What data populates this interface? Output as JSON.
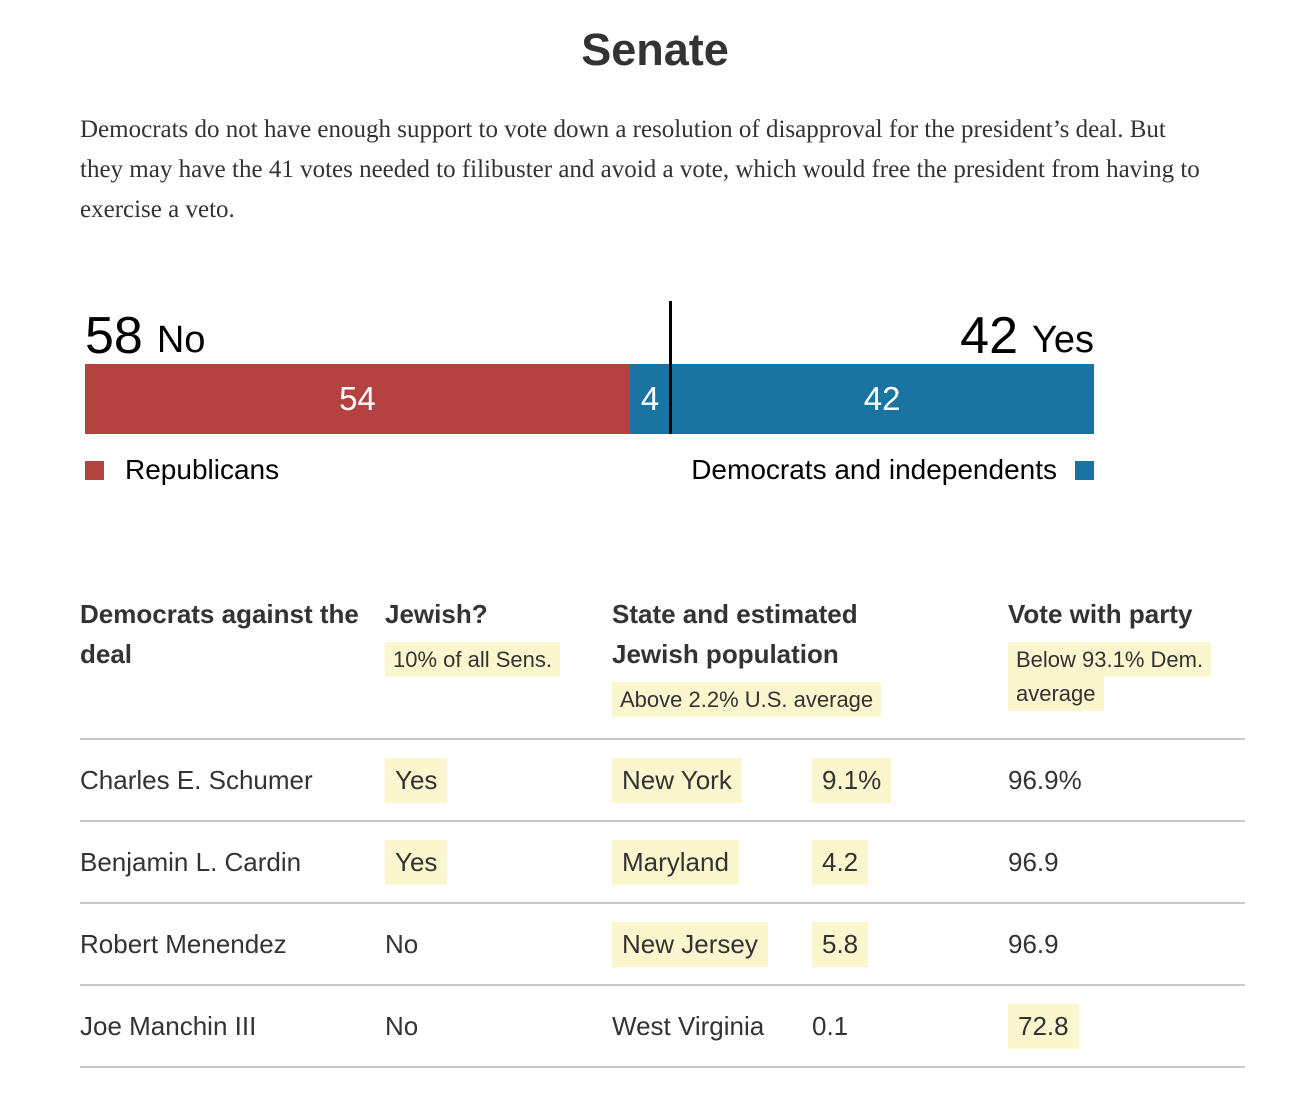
{
  "page_title": "Senate",
  "intro": "Democrats do not have enough support to vote down a resolution of disapproval for the president’s deal. But they may have the 41 votes needed to filibuster and avoid a vote, which would free the president from having to exercise a veto.",
  "colors": {
    "republican_red": "#b44240",
    "democrat_blue": "#1a74a2",
    "highlight_yellow": "#fbf6cd",
    "rule_gray": "#c9c9c9",
    "text_dark": "#333333"
  },
  "chart_data": {
    "type": "bar",
    "title": "Senate",
    "orientation": "horizontal-stacked",
    "x_domain": [
      0,
      100
    ],
    "no": {
      "value": "58",
      "label": "No"
    },
    "yes": {
      "value": "42",
      "label": "Yes"
    },
    "segments": [
      {
        "name": "republicans-no",
        "party": "Republicans",
        "vote": "No",
        "value": 54,
        "color": "#b44240"
      },
      {
        "name": "democrats-no",
        "party": "Democrats and independents",
        "vote": "No",
        "value": 4,
        "color": "#1a74a2"
      },
      {
        "name": "democrats-yes",
        "party": "Democrats and independents",
        "vote": "Yes",
        "value": 42,
        "color": "#1a74a2"
      }
    ],
    "divider_at_votes": 58,
    "legend": [
      {
        "label": "Republicans",
        "color": "#b44240",
        "swatch_side": "left"
      },
      {
        "label": "Democrats and independents",
        "color": "#1a74a2",
        "swatch_side": "right"
      }
    ]
  },
  "table": {
    "headers": {
      "name": "Democrats against the deal",
      "jewish": "Jewish?",
      "jewish_note": "10% of all Sens.",
      "state": "State and estimated Jewish population",
      "state_note": "Above 2.2% U.S. average",
      "party": "Vote with party",
      "party_note": "Below 93.1% Dem. average"
    },
    "rows": [
      {
        "name": "Charles E. Schumer",
        "jewish": "Yes",
        "jewish_hl": true,
        "state": "New York",
        "state_hl": true,
        "population": "9.1%",
        "population_hl": true,
        "vote_with_party": "96.9%",
        "vote_with_party_hl": false
      },
      {
        "name": "Benjamin L. Cardin",
        "jewish": "Yes",
        "jewish_hl": true,
        "state": "Maryland",
        "state_hl": true,
        "population": "4.2",
        "population_hl": true,
        "vote_with_party": "96.9",
        "vote_with_party_hl": false
      },
      {
        "name": "Robert Menendez",
        "jewish": "No",
        "jewish_hl": false,
        "state": "New Jersey",
        "state_hl": true,
        "population": "5.8",
        "population_hl": true,
        "vote_with_party": "96.9",
        "vote_with_party_hl": false
      },
      {
        "name": "Joe Manchin III",
        "jewish": "No",
        "jewish_hl": false,
        "state": "West Virginia",
        "state_hl": false,
        "population": "0.1",
        "population_hl": false,
        "vote_with_party": "72.8",
        "vote_with_party_hl": true
      }
    ]
  }
}
